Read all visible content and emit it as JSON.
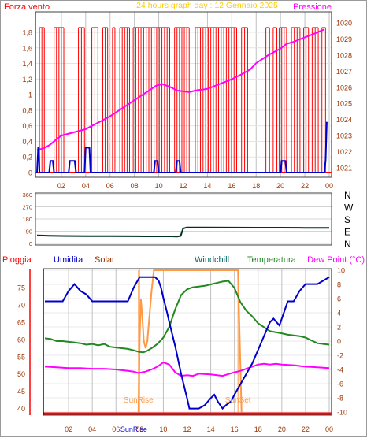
{
  "colors": {
    "wind": "#ff0000",
    "pressure": "#ff00ff",
    "gust": "#0000cc",
    "direction": "#003322",
    "humidity": "#0000cc",
    "solar": "#ff9944",
    "temperature": "#228822",
    "dewpoint": "#ff00ff",
    "rain": "#ff0000",
    "title": "#ffcc00",
    "brown": "#993300",
    "teal": "#006666",
    "grid": "#c0c0c0"
  },
  "chart_data": [
    {
      "type": "line",
      "title": "24 hours graph day : 12 Gennaio 2025",
      "left_label": "Forza vento",
      "right_label": "Pressione",
      "left_ticks": [
        "0",
        "0,2",
        "0,4",
        "0,6",
        "0,8",
        "1",
        "1,2",
        "1,4",
        "1,6",
        "1,8"
      ],
      "right_ticks": [
        "1021",
        "1022",
        "1023",
        "1024",
        "1025",
        "1026",
        "1027",
        "1028",
        "1029",
        "1030"
      ],
      "x_ticks": [
        "02",
        "04",
        "06",
        "08",
        "10",
        "12",
        "14",
        "16",
        "18",
        "20",
        "22",
        "00"
      ],
      "ylim_left": [
        0,
        1.8
      ],
      "ylim_right": [
        1021,
        1030
      ],
      "x_range": [
        0,
        24
      ],
      "series": [
        {
          "role": "pressure",
          "x": [
            0.0,
            0.5,
            1.0,
            1.5,
            2.0,
            3.0,
            4.0,
            5.0,
            6.0,
            7.0,
            8.0,
            9.0,
            9.8,
            10.3,
            11.0,
            11.5,
            12.0,
            12.5,
            13.0,
            14.0,
            15.0,
            16.0,
            16.8,
            17.5,
            18.0,
            19.0,
            20.0,
            20.5,
            21.0,
            22.0,
            23.0,
            23.6
          ],
          "y": [
            1022.1,
            1022.2,
            1022.4,
            1022.7,
            1023.0,
            1023.2,
            1023.4,
            1023.8,
            1024.2,
            1024.7,
            1025.2,
            1025.7,
            1026.1,
            1026.2,
            1026.0,
            1025.8,
            1025.75,
            1025.7,
            1025.8,
            1025.9,
            1026.2,
            1026.5,
            1026.8,
            1027.1,
            1027.5,
            1028.0,
            1028.4,
            1028.7,
            1028.8,
            1029.1,
            1029.4,
            1029.6
          ]
        },
        {
          "role": "gust",
          "x": [
            0.0,
            0.1,
            0.15,
            0.2,
            1.0,
            1.1,
            1.3,
            1.4,
            2.6,
            2.7,
            3.1,
            3.2,
            3.9,
            4.0,
            4.3,
            4.4,
            9.6,
            9.7,
            9.9,
            10.0,
            11.4,
            11.5,
            11.7,
            11.8,
            20.0,
            20.1,
            20.4,
            20.5,
            23.6,
            23.7,
            23.8
          ],
          "y": [
            0.0,
            0.32,
            0.32,
            0.0,
            0.0,
            0.15,
            0.15,
            0.0,
            0.0,
            0.15,
            0.15,
            0.0,
            0.0,
            0.32,
            0.32,
            0.0,
            0.0,
            0.15,
            0.15,
            0.0,
            0.0,
            0.15,
            0.15,
            0.0,
            0.0,
            0.15,
            0.15,
            0.0,
            0.0,
            0.15,
            0.65
          ]
        }
      ],
      "wind_high_intervals": [
        [
          0.2,
          0.6
        ],
        [
          1.4,
          2.2
        ],
        [
          3.4,
          3.9
        ],
        [
          4.5,
          5.0
        ],
        [
          5.4,
          5.8
        ],
        [
          6.2,
          6.4
        ],
        [
          6.8,
          7.6
        ],
        [
          7.9,
          10.9
        ],
        [
          11.3,
          12.5
        ],
        [
          13.0,
          16.4
        ],
        [
          16.8,
          17.3
        ],
        [
          18.8,
          19.1
        ],
        [
          19.4,
          19.7
        ],
        [
          19.9,
          20.5
        ],
        [
          20.9,
          21.6
        ],
        [
          21.9,
          22.3
        ],
        [
          22.6,
          23.1
        ],
        [
          23.4,
          23.7
        ]
      ]
    },
    {
      "type": "line",
      "y_ticks": [
        "0",
        "45",
        "90",
        "135",
        "180",
        "225",
        "270",
        "315",
        "360"
      ],
      "y_ticks_shown": [
        "0",
        "90",
        "180",
        "270",
        "360"
      ],
      "right_labels": [
        "N",
        "W",
        "S",
        "E",
        "N"
      ],
      "ylim": [
        0,
        360
      ],
      "x_range": [
        0,
        24
      ],
      "series": [
        {
          "role": "direction",
          "x": [
            0.0,
            1.0,
            2.0,
            4.0,
            6.0,
            8.0,
            9.0,
            10.0,
            11.0,
            11.5,
            11.8,
            12.0,
            12.3,
            13.0,
            16.0,
            18.0,
            20.0,
            22.0,
            24.0
          ],
          "y": [
            60,
            57,
            55,
            54,
            54,
            53,
            52,
            52,
            52,
            51,
            55,
            110,
            118,
            118,
            117,
            116,
            116,
            115,
            115
          ]
        }
      ]
    },
    {
      "type": "line",
      "labels": {
        "rain": "Pioggia",
        "humidity": "Umidita",
        "solar": "Solar",
        "windchill": "Windchill",
        "temperature": "Temperatura",
        "dewpoint": "Dew Point (°C)"
      },
      "left_ticks": [
        "40",
        "45",
        "50",
        "55",
        "60",
        "65",
        "70",
        "75"
      ],
      "right_ticks": [
        "-10",
        "-8",
        "-6",
        "-4",
        "-2",
        "0",
        "2",
        "4",
        "6",
        "8",
        "10"
      ],
      "x_ticks": [
        "02",
        "04",
        "06",
        "08",
        "10",
        "12",
        "14",
        "16",
        "18",
        "20",
        "22",
        "00"
      ],
      "annotations": {
        "sunrise": "SunRise",
        "sunset": "SunSet",
        "sunrise_axis": "SunRise"
      },
      "ylim_left": [
        39,
        80
      ],
      "ylim_right": [
        -10,
        10
      ],
      "x_range": [
        0,
        24
      ],
      "sunrise_x": 7.9,
      "sunset_x": 16.3,
      "series": [
        {
          "role": "humidity",
          "x": [
            0.0,
            0.5,
            1.5,
            2.0,
            2.5,
            3.0,
            3.5,
            4.0,
            4.5,
            5.0,
            6.0,
            7.0,
            7.5,
            8.0,
            8.5,
            8.7,
            9.0,
            9.3,
            9.6,
            9.8,
            10.0,
            10.3,
            10.5,
            11.0,
            11.5,
            12.0,
            12.2,
            13.0,
            13.5,
            14.0,
            14.3,
            14.6,
            15.0,
            15.3,
            15.7,
            16.0,
            16.5,
            17.0,
            17.5,
            18.0,
            18.5,
            19.0,
            19.3,
            19.8,
            20.5,
            21.0,
            21.5,
            22.0,
            22.5,
            23.0,
            23.5,
            24.0
          ],
          "y": [
            71,
            71,
            71,
            74,
            76,
            74,
            73,
            71,
            71,
            71,
            71,
            71,
            75,
            78,
            78,
            78,
            78,
            78,
            77,
            75,
            72,
            68,
            65,
            58,
            50,
            43,
            40,
            40,
            41,
            43,
            44,
            42,
            40,
            41,
            42,
            44,
            47,
            50,
            53,
            57,
            61,
            65,
            66,
            64,
            71,
            71,
            74,
            76,
            76,
            76,
            77,
            78
          ]
        },
        {
          "role": "temperature",
          "x": [
            0.0,
            0.5,
            1.0,
            1.5,
            2.0,
            2.5,
            3.0,
            3.5,
            4.0,
            4.5,
            5.0,
            5.5,
            6.0,
            6.5,
            7.0,
            7.5,
            7.9,
            8.3,
            8.6,
            9.0,
            9.5,
            10.0,
            10.5,
            11.0,
            11.5,
            12.0,
            12.5,
            13.0,
            13.5,
            14.0,
            14.5,
            15.0,
            15.5,
            16.0,
            16.5,
            17.0,
            17.5,
            18.0,
            19.0,
            20.0,
            20.5,
            21.0,
            21.5,
            22.0,
            22.5,
            23.0,
            23.5,
            24.0
          ],
          "y": [
            0.4,
            0.3,
            0.0,
            0.0,
            -0.1,
            -0.2,
            -0.3,
            -0.5,
            -0.4,
            -0.6,
            -0.4,
            -0.8,
            -0.9,
            -1.0,
            -1.1,
            -1.3,
            -1.5,
            -1.6,
            -1.4,
            -1.0,
            -0.4,
            0.5,
            2.0,
            4.5,
            6.5,
            7.3,
            7.6,
            7.7,
            7.8,
            8.0,
            8.2,
            8.4,
            8.5,
            7.5,
            5.5,
            4.3,
            3.5,
            2.5,
            1.4,
            1.1,
            0.9,
            0.8,
            0.7,
            0.5,
            0.1,
            -0.3,
            -0.4,
            -0.5
          ]
        },
        {
          "role": "dewpoint",
          "x": [
            0.0,
            1.0,
            2.0,
            3.0,
            4.0,
            5.0,
            6.0,
            6.5,
            7.0,
            7.5,
            7.9,
            8.5,
            9.0,
            9.5,
            10.0,
            10.5,
            11.0,
            11.5,
            12.0,
            12.5,
            13.0,
            14.0,
            15.0,
            16.0,
            16.5,
            17.0,
            17.5,
            18.0,
            18.5,
            19.0,
            19.5,
            20.0,
            21.0,
            22.0,
            23.0,
            24.0
          ],
          "y": [
            -3.6,
            -3.7,
            -3.8,
            -3.8,
            -3.9,
            -3.9,
            -4.0,
            -4.1,
            -4.2,
            -4.3,
            -4.5,
            -4.3,
            -4.0,
            -3.6,
            -3.0,
            -3.3,
            -4.4,
            -4.9,
            -4.8,
            -4.9,
            -4.6,
            -4.7,
            -4.9,
            -4.4,
            -4.2,
            -3.9,
            -3.6,
            -3.3,
            -3.2,
            -3.3,
            -3.2,
            -3.3,
            -3.4,
            -3.6,
            -3.7,
            -3.8
          ]
        },
        {
          "role": "solar",
          "x": [
            7.9,
            8.0,
            8.1,
            8.2,
            8.35,
            8.5,
            8.65,
            8.8,
            9.0,
            9.2,
            16.3,
            16.6
          ],
          "y": [
            -10,
            0,
            6,
            4,
            0,
            -1,
            0,
            3,
            7,
            10,
            10,
            -10
          ]
        }
      ]
    }
  ]
}
